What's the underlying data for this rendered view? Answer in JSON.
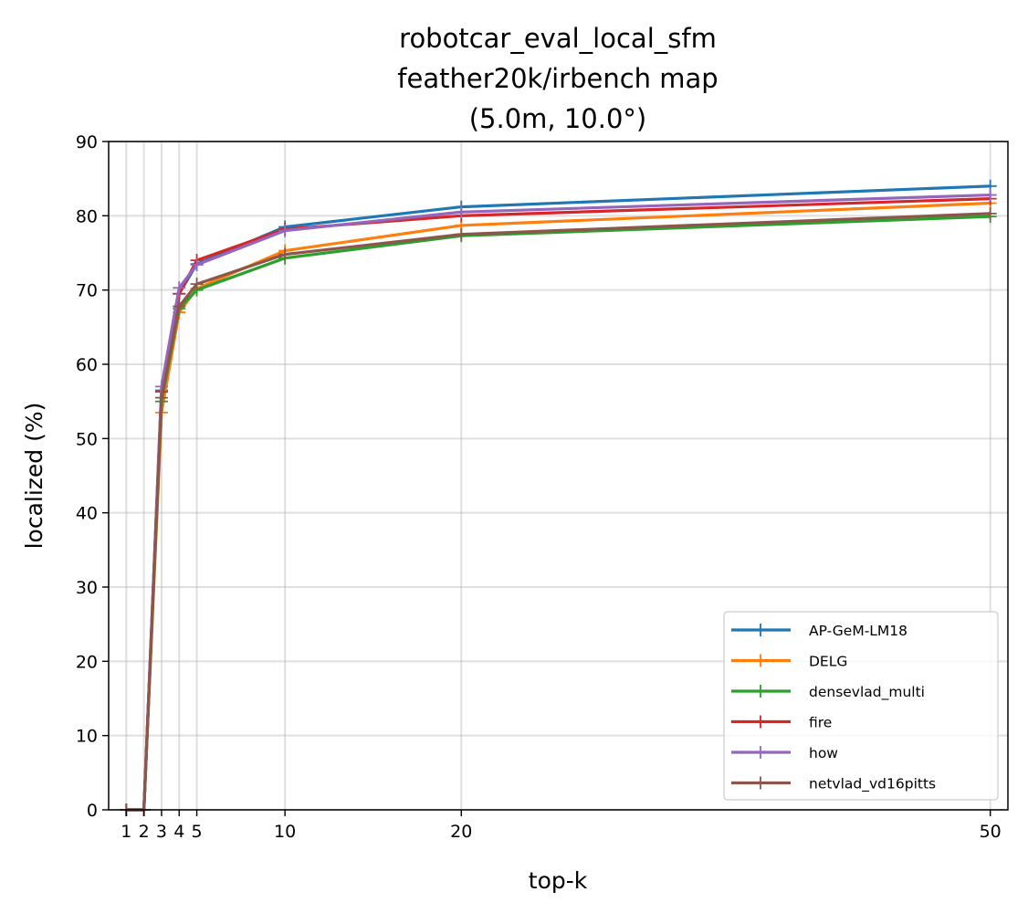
{
  "chart_data": {
    "type": "line",
    "title_lines": [
      "robotcar_eval_local_sfm",
      "feather20k/irbench map",
      "(5.0m, 10.0°)"
    ],
    "xlabel": "top-k",
    "ylabel": "localized (%)",
    "xlim": [
      0,
      51
    ],
    "ylim": [
      0,
      90
    ],
    "x": [
      1,
      2,
      3,
      4,
      5,
      10,
      20,
      50
    ],
    "xticks": [
      1,
      2,
      3,
      4,
      5,
      10,
      20,
      50
    ],
    "yticks": [
      0,
      10,
      20,
      30,
      40,
      50,
      60,
      70,
      80,
      90
    ],
    "grid": true,
    "legend_position": "lower-right",
    "series": [
      {
        "name": "AP-GeM-LM18",
        "color": "#1f77b4",
        "values": [
          0,
          0,
          56.5,
          69.5,
          73.5,
          78.5,
          81.2,
          84.0
        ]
      },
      {
        "name": "DELG",
        "color": "#ff7f0e",
        "values": [
          0,
          0,
          53.5,
          67.0,
          70.2,
          75.3,
          78.7,
          81.7
        ]
      },
      {
        "name": "densevlad_multi",
        "color": "#2ca02c",
        "values": [
          0,
          0,
          55.0,
          67.5,
          70.0,
          74.3,
          77.3,
          79.9
        ]
      },
      {
        "name": "fire",
        "color": "#d62728",
        "values": [
          0,
          0,
          56.3,
          69.5,
          74.0,
          78.2,
          80.0,
          82.3
        ]
      },
      {
        "name": "how",
        "color": "#9467bd",
        "values": [
          0,
          0,
          57.0,
          70.3,
          73.4,
          78.0,
          80.5,
          82.8
        ]
      },
      {
        "name": "netvlad_vd16pitts",
        "color": "#8c564b",
        "values": [
          0,
          0,
          55.5,
          67.8,
          70.8,
          74.8,
          77.5,
          80.3
        ]
      }
    ]
  }
}
